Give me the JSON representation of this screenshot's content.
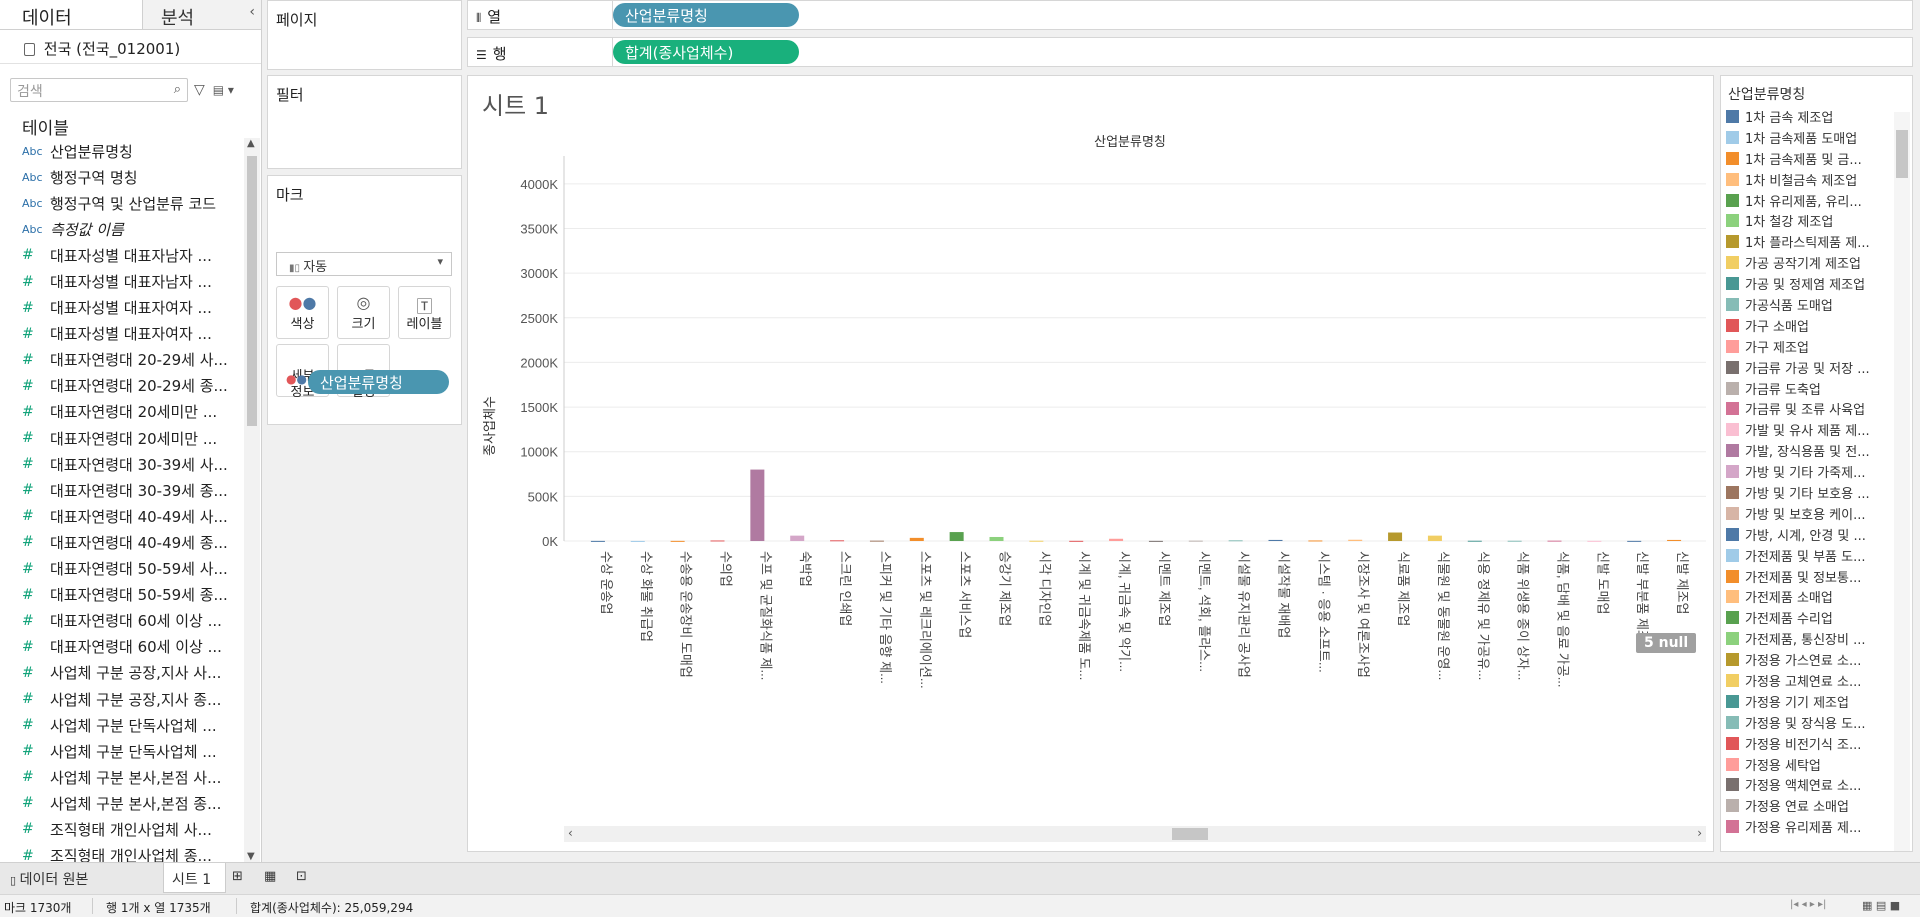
{
  "left_panel": {
    "tab_data": "데이터",
    "tab_analysis": "분석",
    "collapse_icon": "chevron-left-icon",
    "datasource": "전국 (전국_012001)",
    "search_placeholder": "검색",
    "table_header": "테이블",
    "fields": [
      {
        "type": "Abc",
        "label": "산업분류명칭",
        "italic": false
      },
      {
        "type": "Abc",
        "label": "행정구역 명칭",
        "italic": false
      },
      {
        "type": "Abc",
        "label": "행정구역 및 산업분류 코드",
        "italic": false
      },
      {
        "type": "Abc",
        "label": "측정값 이름",
        "italic": true
      },
      {
        "type": "#",
        "label": "대표자성별 대표자남자 ...",
        "italic": false
      },
      {
        "type": "#",
        "label": "대표자성별 대표자남자 ...",
        "italic": false
      },
      {
        "type": "#",
        "label": "대표자성별 대표자여자 ...",
        "italic": false
      },
      {
        "type": "#",
        "label": "대표자성별 대표자여자 ...",
        "italic": false
      },
      {
        "type": "#",
        "label": "대표자연령대 20-29세 사...",
        "italic": false
      },
      {
        "type": "#",
        "label": "대표자연령대 20-29세 종...",
        "italic": false
      },
      {
        "type": "#",
        "label": "대표자연령대 20세미만 ...",
        "italic": false
      },
      {
        "type": "#",
        "label": "대표자연령대 20세미만 ...",
        "italic": false
      },
      {
        "type": "#",
        "label": "대표자연령대 30-39세 사...",
        "italic": false
      },
      {
        "type": "#",
        "label": "대표자연령대 30-39세 종...",
        "italic": false
      },
      {
        "type": "#",
        "label": "대표자연령대 40-49세 사...",
        "italic": false
      },
      {
        "type": "#",
        "label": "대표자연령대 40-49세 종...",
        "italic": false
      },
      {
        "type": "#",
        "label": "대표자연령대 50-59세 사...",
        "italic": false
      },
      {
        "type": "#",
        "label": "대표자연령대 50-59세 종...",
        "italic": false
      },
      {
        "type": "#",
        "label": "대표자연령대 60세 이상 ...",
        "italic": false
      },
      {
        "type": "#",
        "label": "대표자연령대 60세 이상 ...",
        "italic": false
      },
      {
        "type": "#",
        "label": "사업체 구분 공장,지사 사...",
        "italic": false
      },
      {
        "type": "#",
        "label": "사업체 구분 공장,지사 종...",
        "italic": false
      },
      {
        "type": "#",
        "label": "사업체 구분 단독사업체 ...",
        "italic": false
      },
      {
        "type": "#",
        "label": "사업체 구분 단독사업체 ...",
        "italic": false
      },
      {
        "type": "#",
        "label": "사업체 구분 본사,본점 사...",
        "italic": false
      },
      {
        "type": "#",
        "label": "사업체 구분 본사,본점 종...",
        "italic": false
      },
      {
        "type": "#",
        "label": "조직형태 개인사업체 사...",
        "italic": false
      },
      {
        "type": "#",
        "label": "조직형태 개인사업체 종...",
        "italic": false
      }
    ]
  },
  "shelves": {
    "pages_title": "페이지",
    "filters_title": "필터",
    "marks_title": "마크",
    "marks_type": "자동",
    "marks_buttons": [
      {
        "label": "색상",
        "icon": "color-dots-icon"
      },
      {
        "label": "크기",
        "icon": "size-icon"
      },
      {
        "label": "레이블",
        "icon": "label-icon"
      },
      {
        "label": "세부\n정보",
        "icon": "detail-icon"
      },
      {
        "label": "도구\n설명",
        "icon": "tooltip-icon"
      }
    ],
    "marks_pill": "산업분류명칭",
    "columns_label": "열",
    "columns_pill": "산업분류명칭",
    "rows_label": "행",
    "rows_pill": "합계(종사업체수)"
  },
  "sheet": {
    "title": "시트 1",
    "null_badge": "5 null"
  },
  "chart_data": {
    "type": "bar",
    "title": "산업분류명칭",
    "ylabel": "종사업체수",
    "xlabel": "",
    "ylim": [
      0,
      4200000
    ],
    "yticks": [
      "0K",
      "500K",
      "1000K",
      "1500K",
      "2000K",
      "2500K",
      "3000K",
      "3500K",
      "4000K"
    ],
    "ytick_values": [
      0,
      500000,
      1000000,
      1500000,
      2000000,
      2500000,
      3000000,
      3500000,
      4000000
    ],
    "grid": true,
    "categories": [
      "수상 운송업",
      "수상 화물 취급업",
      "수송용 운송장비 도매업",
      "수의업",
      "수프 및 균질화식품 제...",
      "숙박업",
      "스크린 인쇄업",
      "스피커 및 기타 음향 제...",
      "스포츠 및 레크리에이션...",
      "스포츠 서비스업",
      "승강기 제조업",
      "시각 디자인업",
      "시계 및 귀금속제품 도...",
      "시계, 귀금속 및 악기...",
      "시멘트 제조업",
      "시멘트, 석회, 플라스...",
      "시설물 유지관리 공사업",
      "시설작물 재배업",
      "시스템 · 응용 소프트...",
      "시장조사 및 여론조사업",
      "식료품 제조업",
      "식물원 및 동물원 운영...",
      "식용 정제유 및 가공유...",
      "식품 위생용 종이 상자...",
      "식품, 담배 및 음료 가공...",
      "신발 도매업",
      "신발 부분품 제조업",
      "신발 제조업"
    ],
    "values": [
      1200,
      800,
      1500,
      6000,
      800000,
      60000,
      8000,
      4000,
      35000,
      100000,
      45000,
      3000,
      2000,
      25000,
      1500,
      4000,
      8000,
      12000,
      6000,
      14000,
      95000,
      60000,
      3000,
      3000,
      4000,
      2000,
      1500,
      12000
    ],
    "colors": [
      "#4e79a7",
      "#a0cbe8",
      "#f28e2b",
      "#e15759",
      "#b07aa1",
      "#d4a6c8",
      "#e15759",
      "#9d7660",
      "#f28e2b",
      "#59a14f",
      "#8cd17d",
      "#f1ce63",
      "#e15759",
      "#ff9d9a",
      "#79706e",
      "#bab0ac",
      "#86bcb6",
      "#4e79a7",
      "#f28e2b",
      "#ffbe7d",
      "#b6992d",
      "#f1ce63",
      "#499894",
      "#86bcb6",
      "#d37295",
      "#fabfd2",
      "#4e79a7",
      "#f28e2b"
    ]
  },
  "legend": {
    "title": "산업분류명칭",
    "items": [
      {
        "label": "1차 금속 제조업",
        "color": "#4e79a7"
      },
      {
        "label": "1차 금속제품 도매업",
        "color": "#a0cbe8"
      },
      {
        "label": "1차 금속제품 및 금...",
        "color": "#f28e2b"
      },
      {
        "label": "1차 비철금속 제조업",
        "color": "#ffbe7d"
      },
      {
        "label": "1차 유리제품, 유리...",
        "color": "#59a14f"
      },
      {
        "label": "1차 철강 제조업",
        "color": "#8cd17d"
      },
      {
        "label": "1차 플라스틱제품 제...",
        "color": "#b6992d"
      },
      {
        "label": "가공 공작기계 제조업",
        "color": "#f1ce63"
      },
      {
        "label": "가공 및 정제염 제조업",
        "color": "#499894"
      },
      {
        "label": "가공식품 도매업",
        "color": "#86bcb6"
      },
      {
        "label": "가구 소매업",
        "color": "#e15759"
      },
      {
        "label": "가구 제조업",
        "color": "#ff9d9a"
      },
      {
        "label": "가금류 가공 및 저장 ...",
        "color": "#79706e"
      },
      {
        "label": "가금류 도축업",
        "color": "#bab0ac"
      },
      {
        "label": "가금류 및 조류 사육업",
        "color": "#d37295"
      },
      {
        "label": "가발 및 유사 제품 제...",
        "color": "#fabfd2"
      },
      {
        "label": "가발, 장식용품 및 전...",
        "color": "#b07aa1"
      },
      {
        "label": "가방 및 기타 가죽제...",
        "color": "#d4a6c8"
      },
      {
        "label": "가방 및 기타 보호용 ...",
        "color": "#9d7660"
      },
      {
        "label": "가방 및 보호용 케이...",
        "color": "#d7b5a6"
      },
      {
        "label": "가방, 시계, 안경 및 ...",
        "color": "#4e79a7"
      },
      {
        "label": "가전제품 및 부품 도...",
        "color": "#a0cbe8"
      },
      {
        "label": "가전제품 및 정보통...",
        "color": "#f28e2b"
      },
      {
        "label": "가전제품 소매업",
        "color": "#ffbe7d"
      },
      {
        "label": "가전제품 수리업",
        "color": "#59a14f"
      },
      {
        "label": "가전제품, 통신장비 ...",
        "color": "#8cd17d"
      },
      {
        "label": "가정용 가스연료 소...",
        "color": "#b6992d"
      },
      {
        "label": "가정용 고체연료 소...",
        "color": "#f1ce63"
      },
      {
        "label": "가정용 기기 제조업",
        "color": "#499894"
      },
      {
        "label": "가정용 및 장식용 도...",
        "color": "#86bcb6"
      },
      {
        "label": "가정용 비전기식 조...",
        "color": "#e15759"
      },
      {
        "label": "가정용 세탁업",
        "color": "#ff9d9a"
      },
      {
        "label": "가정용 액체연료 소...",
        "color": "#79706e"
      },
      {
        "label": "가정용 연료 소매업",
        "color": "#bab0ac"
      },
      {
        "label": "가정용 유리제품 제...",
        "color": "#d37295"
      }
    ]
  },
  "bottom": {
    "datasource_tab": "데이터 원본",
    "sheet_tab": "시트 1",
    "new_sheet_icon": "new-worksheet-icon",
    "new_dashboard_icon": "new-dashboard-icon",
    "new_story_icon": "new-story-icon"
  },
  "status": {
    "marks": "마크 1730개",
    "rows_cols": "행 1개 x 열 1735개",
    "sum": "합계(종사업체수): 25,059,294"
  }
}
